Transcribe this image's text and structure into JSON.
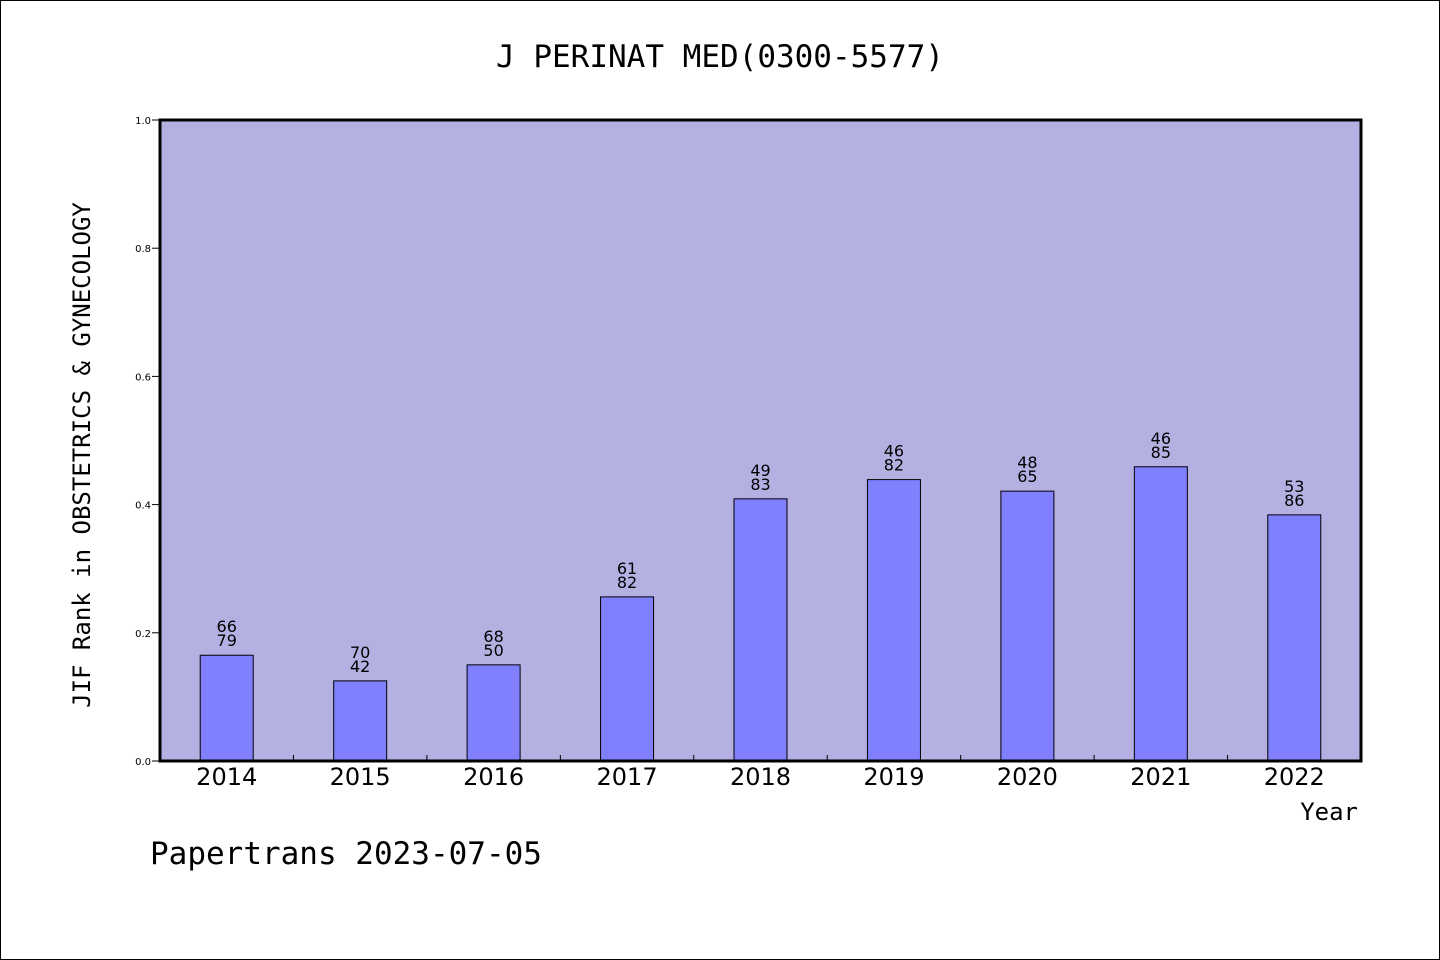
{
  "chart_data": {
    "type": "bar",
    "title": "J PERINAT MED(0300-5577)",
    "xlabel": "Year",
    "ylabel": "JIF Rank in OBSTETRICS & GYNECOLOGY",
    "ylim": [
      0,
      1.0
    ],
    "yticks": [
      "0.0",
      "0.2",
      "0.4",
      "0.6",
      "0.8",
      "1.0"
    ],
    "categories": [
      "2014",
      "2015",
      "2016",
      "2017",
      "2018",
      "2019",
      "2020",
      "2021",
      "2022"
    ],
    "values": [
      0.165,
      0.125,
      0.15,
      0.256,
      0.409,
      0.439,
      0.421,
      0.459,
      0.384
    ],
    "labels_top": [
      "66",
      "70",
      "68",
      "61",
      "49",
      "46",
      "48",
      "46",
      "53"
    ],
    "labels_bottom": [
      "79",
      "42",
      "50",
      "82",
      "83",
      "82",
      "65",
      "85",
      "86"
    ],
    "grid": false,
    "colors": {
      "plot_bg": "#b5b0e2",
      "bar": "#8080ff",
      "axis": "#000000"
    }
  },
  "footer": {
    "text": "Papertrans 2023-07-05"
  }
}
